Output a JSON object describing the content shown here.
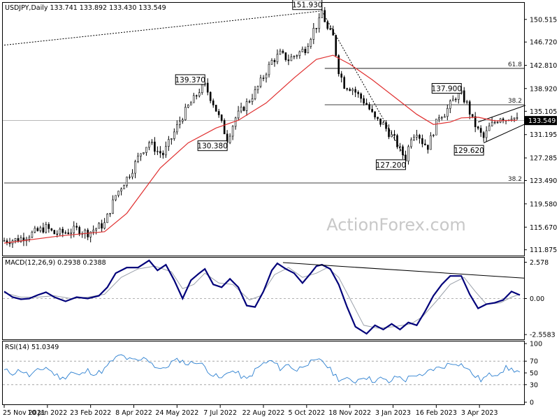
{
  "chart_data": {
    "type": "candlestick",
    "title": "USDJPY,Daily  133.741 133.892 133.430 133.549",
    "watermark": "ActionForex.com",
    "last_price": {
      "value": 133.549,
      "label": "133.549"
    },
    "colors": {
      "candle": "#000000",
      "ma": "#e03030",
      "macd": "#00007a",
      "signal": "#9aa0aa",
      "rsi": "#2b7fd0",
      "boxed_last": "#000000"
    },
    "x_dates": [
      "25 Nov 2021",
      "10 Jan 2022",
      "23 Feb 2022",
      "8 Apr 2022",
      "24 May 2022",
      "7 Jul 2022",
      "22 Aug 2022",
      "5 Oct 2022",
      "18 Nov 2022",
      "3 Jan 2023",
      "16 Feb 2023",
      "3 Apr 2023"
    ],
    "price_axis": {
      "ylim": [
        110.9,
        153.3
      ],
      "ticks": [
        "150.515",
        "146.720",
        "142.810",
        "138.920",
        "135.105",
        "131.195",
        "127.285",
        "123.490",
        "119.580",
        "115.670",
        "111.875"
      ],
      "tick_values": [
        150.515,
        146.72,
        142.81,
        138.92,
        135.105,
        131.195,
        127.285,
        123.49,
        119.58,
        115.67,
        111.875
      ]
    },
    "price_path": [
      [
        0,
        113.4
      ],
      [
        5,
        113.6
      ],
      [
        8,
        114.2
      ],
      [
        12,
        115.0
      ],
      [
        15,
        115.6
      ],
      [
        18,
        114.6
      ],
      [
        22,
        114.8
      ],
      [
        26,
        115.3
      ],
      [
        30,
        114.7
      ],
      [
        33,
        115.5
      ],
      [
        36,
        116.2
      ],
      [
        40,
        121.0
      ],
      [
        44,
        123.9
      ],
      [
        46,
        125.4
      ],
      [
        49,
        128.2
      ],
      [
        52,
        129.9
      ],
      [
        55,
        128.4
      ],
      [
        57,
        127.9
      ],
      [
        60,
        130.6
      ],
      [
        63,
        133.5
      ],
      [
        66,
        135.9
      ],
      [
        68,
        137.1
      ],
      [
        70,
        138.6
      ],
      [
        72,
        139.37
      ],
      [
        75,
        136.5
      ],
      [
        78,
        133.0
      ],
      [
        80,
        130.38
      ],
      [
        83,
        134.0
      ],
      [
        86,
        135.8
      ],
      [
        90,
        138.3
      ],
      [
        93,
        140.9
      ],
      [
        96,
        143.5
      ],
      [
        99,
        144.7
      ],
      [
        102,
        143.8
      ],
      [
        105,
        144.7
      ],
      [
        108,
        145.6
      ],
      [
        111,
        148.8
      ],
      [
        113,
        150.1
      ],
      [
        114,
        151.93
      ],
      [
        116,
        148.8
      ],
      [
        118,
        147.6
      ],
      [
        120,
        142.0
      ],
      [
        122,
        139.5
      ],
      [
        125,
        138.9
      ],
      [
        127,
        137.8
      ],
      [
        130,
        136.3
      ],
      [
        133,
        133.8
      ],
      [
        136,
        132.9
      ],
      [
        138,
        131.5
      ],
      [
        140,
        130.4
      ],
      [
        142,
        128.6
      ],
      [
        144,
        127.2
      ],
      [
        146,
        130.9
      ],
      [
        148,
        131.8
      ],
      [
        150,
        130.0
      ],
      [
        152,
        129.2
      ],
      [
        154,
        131.8
      ],
      [
        156,
        134.4
      ],
      [
        158,
        134.8
      ],
      [
        160,
        136.2
      ],
      [
        162,
        137.6
      ],
      [
        164,
        137.9
      ],
      [
        166,
        136.3
      ],
      [
        168,
        133.6
      ],
      [
        170,
        131.9
      ],
      [
        172,
        130.6
      ],
      [
        174,
        132.4
      ],
      [
        176,
        133.3
      ],
      [
        178,
        134.2
      ],
      [
        180,
        133.8
      ],
      [
        182,
        134.4
      ],
      [
        184,
        133.549
      ]
    ],
    "ma_series": [
      [
        0,
        113.0
      ],
      [
        20,
        114.2
      ],
      [
        36,
        114.9
      ],
      [
        44,
        118.0
      ],
      [
        56,
        125.6
      ],
      [
        66,
        129.8
      ],
      [
        76,
        132.3
      ],
      [
        84,
        133.6
      ],
      [
        94,
        136.5
      ],
      [
        104,
        140.7
      ],
      [
        112,
        143.8
      ],
      [
        118,
        144.5
      ],
      [
        124,
        143.0
      ],
      [
        132,
        140.4
      ],
      [
        140,
        137.5
      ],
      [
        148,
        134.6
      ],
      [
        154,
        132.9
      ],
      [
        160,
        133.3
      ],
      [
        164,
        134.0
      ],
      [
        170,
        134.1
      ],
      [
        176,
        133.5
      ],
      [
        184,
        133.6
      ]
    ],
    "highs": [
      {
        "label": "151.930",
        "i": 114,
        "value": 151.93
      },
      {
        "label": "139.370",
        "i": 72,
        "value": 139.37
      },
      {
        "label": "137.900",
        "i": 164,
        "value": 137.9
      }
    ],
    "lows": [
      {
        "label": "130.380",
        "i": 80,
        "value": 130.38
      },
      {
        "label": "127.200",
        "i": 144,
        "value": 127.2
      },
      {
        "label": "129.620",
        "i": 172,
        "value": 129.62
      }
    ],
    "fib_levels": [
      {
        "label": "61.8",
        "value": 142.3,
        "from_i": 115
      },
      {
        "label": "38.2",
        "value": 136.2,
        "from_i": 115
      },
      {
        "label": "38.2",
        "value": 123.08,
        "from_i": 0
      }
    ],
    "trendlines": [
      {
        "from": [
          0,
          146.2
        ],
        "to": [
          114,
          151.93
        ],
        "style": "dotted"
      },
      {
        "from": [
          114,
          151.93
        ],
        "to": [
          144,
          127.2
        ],
        "style": "dotted"
      },
      {
        "from": [
          172,
          129.8
        ],
        "to": [
          187,
          133.0
        ],
        "style": "solid"
      },
      {
        "from": [
          170,
          133.3
        ],
        "to": [
          187,
          136.1
        ],
        "style": "solid"
      }
    ],
    "macd": {
      "label": "MACD(12,26,9) 0.2938 0.2388",
      "ylim": [
        -2.9,
        2.9
      ],
      "ticks": [
        "2.578",
        "0.00",
        "-2.5583"
      ],
      "tick_values": [
        2.578,
        0.0,
        -2.5583
      ],
      "line": [
        [
          0,
          0.5
        ],
        [
          3,
          0.1
        ],
        [
          6,
          -0.05
        ],
        [
          9,
          0.0
        ],
        [
          12,
          0.25
        ],
        [
          15,
          0.45
        ],
        [
          18,
          0.1
        ],
        [
          22,
          -0.2
        ],
        [
          26,
          0.1
        ],
        [
          30,
          0.0
        ],
        [
          34,
          0.2
        ],
        [
          37,
          0.8
        ],
        [
          40,
          1.8
        ],
        [
          44,
          2.2
        ],
        [
          48,
          2.2
        ],
        [
          52,
          2.7
        ],
        [
          55,
          2.0
        ],
        [
          58,
          2.4
        ],
        [
          61,
          1.3
        ],
        [
          64,
          0.0
        ],
        [
          67,
          1.3
        ],
        [
          70,
          1.8
        ],
        [
          72,
          2.1
        ],
        [
          75,
          1.0
        ],
        [
          78,
          0.8
        ],
        [
          81,
          1.4
        ],
        [
          84,
          0.8
        ],
        [
          87,
          -0.5
        ],
        [
          90,
          -0.6
        ],
        [
          93,
          0.5
        ],
        [
          96,
          2.0
        ],
        [
          98,
          2.5
        ],
        [
          101,
          2.1
        ],
        [
          104,
          1.8
        ],
        [
          107,
          1.1
        ],
        [
          110,
          1.8
        ],
        [
          112,
          2.3
        ],
        [
          114,
          2.4
        ],
        [
          117,
          2.1
        ],
        [
          120,
          1.0
        ],
        [
          123,
          -0.6
        ],
        [
          126,
          -2.0
        ],
        [
          130,
          -2.5
        ],
        [
          133,
          -1.9
        ],
        [
          136,
          -2.2
        ],
        [
          139,
          -1.8
        ],
        [
          142,
          -2.2
        ],
        [
          145,
          -1.7
        ],
        [
          148,
          -1.9
        ],
        [
          151,
          -0.9
        ],
        [
          154,
          0.2
        ],
        [
          157,
          1.0
        ],
        [
          160,
          1.6
        ],
        [
          164,
          1.6
        ],
        [
          167,
          0.3
        ],
        [
          170,
          -0.7
        ],
        [
          173,
          -0.4
        ],
        [
          176,
          -0.3
        ],
        [
          179,
          -0.1
        ],
        [
          182,
          0.5
        ],
        [
          185,
          0.25
        ]
      ],
      "signal": [
        [
          0,
          0.4
        ],
        [
          6,
          0.1
        ],
        [
          12,
          0.1
        ],
        [
          18,
          0.2
        ],
        [
          24,
          0.0
        ],
        [
          30,
          0.1
        ],
        [
          36,
          0.3
        ],
        [
          42,
          1.5
        ],
        [
          48,
          2.1
        ],
        [
          54,
          2.3
        ],
        [
          60,
          1.9
        ],
        [
          64,
          0.7
        ],
        [
          68,
          1.0
        ],
        [
          72,
          1.8
        ],
        [
          77,
          1.1
        ],
        [
          82,
          1.0
        ],
        [
          88,
          -0.1
        ],
        [
          92,
          0.2
        ],
        [
          97,
          1.7
        ],
        [
          102,
          2.2
        ],
        [
          107,
          1.5
        ],
        [
          112,
          1.8
        ],
        [
          116,
          2.2
        ],
        [
          120,
          1.5
        ],
        [
          124,
          0.0
        ],
        [
          129,
          -1.9
        ],
        [
          134,
          -2.1
        ],
        [
          140,
          -2.0
        ],
        [
          146,
          -1.8
        ],
        [
          150,
          -1.3
        ],
        [
          155,
          -0.2
        ],
        [
          160,
          1.0
        ],
        [
          165,
          1.5
        ],
        [
          169,
          0.5
        ],
        [
          173,
          -0.4
        ],
        [
          178,
          -0.3
        ],
        [
          182,
          0.1
        ],
        [
          185,
          0.3
        ]
      ],
      "trendline": {
        "from": [
          100,
          2.55
        ],
        "to": [
          187,
          1.45
        ]
      }
    },
    "rsi": {
      "label": "RSI(14) 51.0349",
      "ylim": [
        0,
        100
      ],
      "ticks": [
        "100",
        "70",
        "50",
        "30",
        "0"
      ],
      "tick_values": [
        100,
        70,
        50,
        30,
        0
      ],
      "dashed_levels": [
        70,
        30
      ],
      "line": [
        [
          0,
          54
        ],
        [
          3,
          50
        ],
        [
          6,
          55
        ],
        [
          9,
          45
        ],
        [
          12,
          53
        ],
        [
          15,
          60
        ],
        [
          18,
          48
        ],
        [
          21,
          40
        ],
        [
          24,
          52
        ],
        [
          27,
          45
        ],
        [
          30,
          54
        ],
        [
          33,
          48
        ],
        [
          36,
          56
        ],
        [
          39,
          72
        ],
        [
          42,
          80
        ],
        [
          45,
          72
        ],
        [
          48,
          70
        ],
        [
          51,
          76
        ],
        [
          54,
          62
        ],
        [
          57,
          55
        ],
        [
          60,
          68
        ],
        [
          63,
          72
        ],
        [
          66,
          65
        ],
        [
          69,
          70
        ],
        [
          72,
          60
        ],
        [
          75,
          46
        ],
        [
          78,
          40
        ],
        [
          81,
          55
        ],
        [
          84,
          48
        ],
        [
          87,
          38
        ],
        [
          90,
          54
        ],
        [
          93,
          66
        ],
        [
          96,
          70
        ],
        [
          99,
          58
        ],
        [
          102,
          64
        ],
        [
          105,
          54
        ],
        [
          108,
          66
        ],
        [
          111,
          68
        ],
        [
          114,
          72
        ],
        [
          117,
          55
        ],
        [
          120,
          40
        ],
        [
          123,
          38
        ],
        [
          126,
          36
        ],
        [
          129,
          45
        ],
        [
          132,
          37
        ],
        [
          135,
          40
        ],
        [
          138,
          34
        ],
        [
          141,
          44
        ],
        [
          144,
          38
        ],
        [
          147,
          48
        ],
        [
          150,
          42
        ],
        [
          153,
          56
        ],
        [
          156,
          58
        ],
        [
          159,
          64
        ],
        [
          162,
          68
        ],
        [
          165,
          62
        ],
        [
          168,
          48
        ],
        [
          171,
          38
        ],
        [
          174,
          46
        ],
        [
          177,
          50
        ],
        [
          180,
          58
        ],
        [
          183,
          55
        ],
        [
          185,
          51
        ]
      ]
    }
  }
}
